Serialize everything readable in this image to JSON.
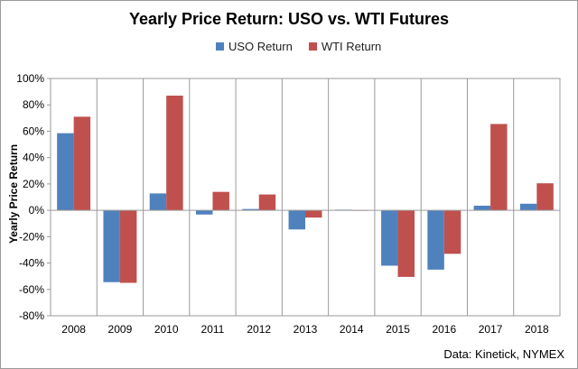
{
  "chart_data": {
    "type": "bar",
    "title": "Yearly Price Return: USO vs. WTI Futures",
    "xlabel": "",
    "ylabel": "Yearly Price Return",
    "categories": [
      "2008",
      "2009",
      "2010",
      "2011",
      "2012",
      "2013",
      "2014",
      "2015",
      "2016",
      "2017",
      "2018"
    ],
    "series": [
      {
        "name": "USO Return",
        "color": "#4f81bd",
        "values": [
          58.5,
          -54.5,
          12.8,
          -3.2,
          1.0,
          -14.5,
          0.5,
          -42.0,
          -45.0,
          3.5,
          5.0
        ]
      },
      {
        "name": "WTI Return",
        "color": "#c0504d",
        "values": [
          71.0,
          -55.0,
          87.0,
          14.0,
          12.0,
          -5.5,
          0.2,
          -50.5,
          -33.0,
          65.5,
          20.5
        ]
      }
    ],
    "ylim": [
      -80,
      100
    ],
    "yticks": [
      -80,
      -60,
      -40,
      -20,
      0,
      20,
      40,
      60,
      80,
      100
    ],
    "ytick_labels": [
      "-80%",
      "-60%",
      "-40%",
      "-20%",
      "0%",
      "20%",
      "40%",
      "60%",
      "80%",
      "100%"
    ],
    "grid": "vertical separators",
    "legend_position": "top"
  },
  "source_note": "Data: Kinetick, NYMEX"
}
